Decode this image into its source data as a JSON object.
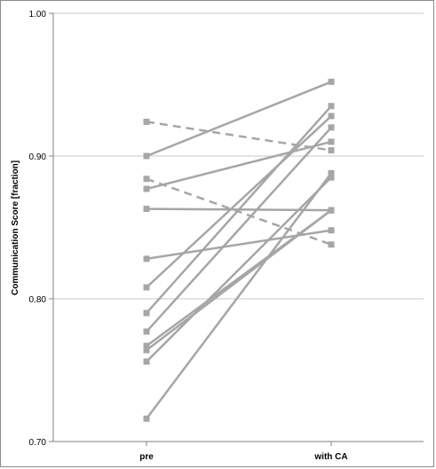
{
  "chart_data": {
    "type": "line",
    "categories": [
      "pre",
      "with CA"
    ],
    "title": "",
    "xlabel": "",
    "ylabel": "Communication Score [fraction]",
    "ylim": [
      0.7,
      1.0
    ],
    "yticks": [
      "0.70",
      "0.80",
      "0.90",
      "1.00"
    ],
    "grid": true,
    "legend": "none",
    "line_color": "#a6a6a6",
    "series": [
      {
        "values": [
          0.924,
          0.904
        ],
        "style": "dashed"
      },
      {
        "values": [
          0.884,
          0.838
        ],
        "style": "dashed"
      },
      {
        "values": [
          0.9,
          0.952
        ],
        "style": "solid"
      },
      {
        "values": [
          0.877,
          0.91
        ],
        "style": "solid"
      },
      {
        "values": [
          0.863,
          0.862
        ],
        "style": "solid"
      },
      {
        "values": [
          0.828,
          0.848
        ],
        "style": "solid"
      },
      {
        "values": [
          0.808,
          0.928
        ],
        "style": "solid"
      },
      {
        "values": [
          0.79,
          0.935
        ],
        "style": "solid"
      },
      {
        "values": [
          0.777,
          0.92
        ],
        "style": "solid"
      },
      {
        "values": [
          0.767,
          0.862
        ],
        "style": "solid"
      },
      {
        "values": [
          0.764,
          0.862
        ],
        "style": "solid"
      },
      {
        "values": [
          0.756,
          0.885
        ],
        "style": "solid"
      },
      {
        "values": [
          0.716,
          0.888
        ],
        "style": "solid"
      }
    ]
  }
}
